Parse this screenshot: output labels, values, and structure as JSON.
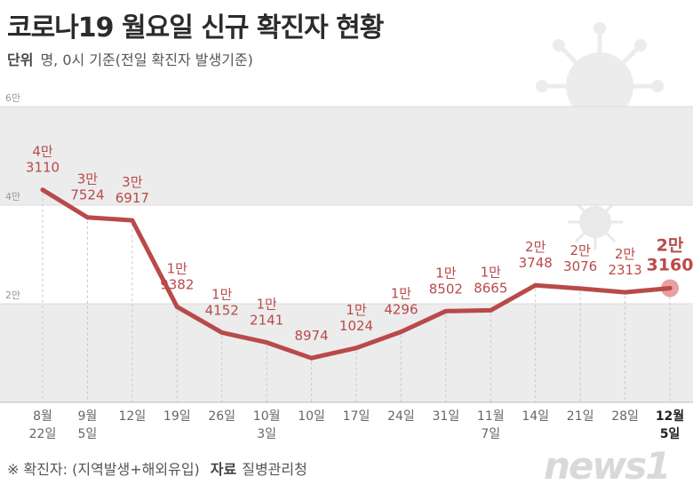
{
  "title": "코로나19 월요일 신규 확진자 현황",
  "unit_label": "단위",
  "unit_text": "명, 0시 기준(전일 확진자 발생기준)",
  "footnote": "※ 확진자: (지역발생+해외유입)",
  "source_label": "자료",
  "source_text": "질병관리청",
  "logo_text": "news1",
  "colors": {
    "line": "#b94a4a",
    "label": "#b94a4a",
    "band": "#ececec",
    "highlight": "#e8a0a0"
  },
  "chart_data": {
    "type": "line",
    "title": "코로나19 월요일 신규 확진자 현황",
    "ylabel": "명",
    "ylim": [
      0,
      60000
    ],
    "yticks": [
      {
        "value": 20000,
        "label": "2만"
      },
      {
        "value": 40000,
        "label": "4만"
      },
      {
        "value": 60000,
        "label": "6만"
      }
    ],
    "categories": [
      [
        "8월",
        "22일"
      ],
      [
        "9월",
        "5일"
      ],
      [
        "12일"
      ],
      [
        "19일"
      ],
      [
        "26일"
      ],
      [
        "10월",
        "3일"
      ],
      [
        "10일"
      ],
      [
        "17일"
      ],
      [
        "24일"
      ],
      [
        "31일"
      ],
      [
        "11월",
        "7일"
      ],
      [
        "14일"
      ],
      [
        "21일"
      ],
      [
        "28일"
      ],
      [
        "12월",
        "5일"
      ]
    ],
    "values": [
      43110,
      37524,
      36917,
      19382,
      14152,
      12141,
      8974,
      11024,
      14296,
      18502,
      18665,
      23748,
      23076,
      22313,
      23160
    ],
    "point_labels": [
      [
        "4만",
        "3110"
      ],
      [
        "3만",
        "7524"
      ],
      [
        "3만",
        "6917"
      ],
      [
        "1만",
        "9382"
      ],
      [
        "1만",
        "4152"
      ],
      [
        "1만",
        "2141"
      ],
      [
        "",
        "8974"
      ],
      [
        "1만",
        "1024"
      ],
      [
        "1만",
        "4296"
      ],
      [
        "1만",
        "8502"
      ],
      [
        "1만",
        "8665"
      ],
      [
        "2만",
        "3748"
      ],
      [
        "2만",
        "3076"
      ],
      [
        "2만",
        "2313"
      ],
      [
        "2만",
        "3160"
      ]
    ],
    "highlight_index": 14
  }
}
